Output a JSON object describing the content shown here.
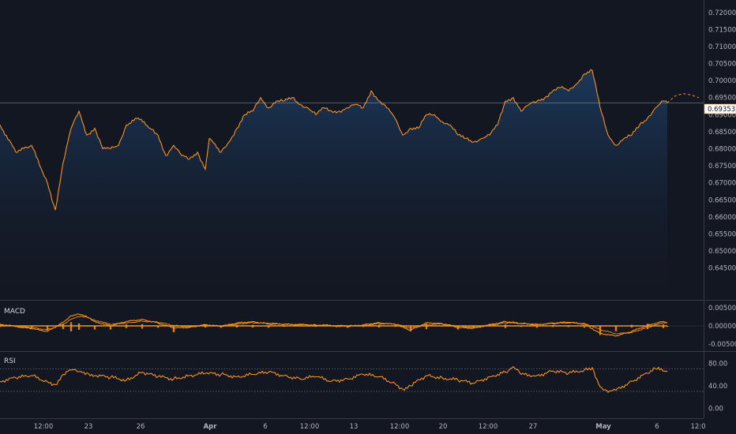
{
  "colors": {
    "background": "#131722",
    "line": "#f7931a",
    "area_top": "#1c3a5e",
    "separator": "#363a45",
    "axis_text": "#b2b5be",
    "price_label_bg": "#ffffff"
  },
  "panes": {
    "macd_label": "MACD",
    "rsi_label": "RSI"
  },
  "price_label": "0.69353",
  "chart_data": [
    {
      "type": "area",
      "pane": "price",
      "ylim": [
        0.6375,
        0.7225
      ],
      "yticks": [
        "0.72000",
        "0.71500",
        "0.71000",
        "0.70500",
        "0.70000",
        "0.69500",
        "0.69000",
        "0.68500",
        "0.68000",
        "0.67500",
        "0.67000",
        "0.66500",
        "0.66000",
        "0.65500",
        "0.65000",
        "0.64500"
      ],
      "ytick_values": [
        0.72,
        0.715,
        0.71,
        0.705,
        0.7,
        0.695,
        0.69,
        0.685,
        0.68,
        0.675,
        0.67,
        0.665,
        0.66,
        0.655,
        0.65,
        0.645
      ],
      "x": [
        0,
        20,
        40,
        60,
        70,
        80,
        90,
        100,
        110,
        120,
        130,
        140,
        150,
        160,
        175,
        190,
        200,
        210,
        220,
        230,
        240,
        250,
        260,
        265,
        280,
        290,
        300,
        310,
        320,
        330,
        340,
        350,
        360,
        370,
        380,
        390,
        400,
        410,
        420,
        430,
        440,
        450,
        460,
        470,
        480,
        490,
        500,
        510,
        520,
        530,
        540,
        550,
        560,
        570,
        580,
        590,
        600,
        610,
        620,
        630,
        640,
        650,
        660,
        670,
        680,
        690,
        700,
        710,
        720,
        730,
        740,
        750,
        760,
        770,
        780,
        790,
        800,
        810,
        820,
        830,
        840,
        845
      ],
      "values": [
        0.687,
        0.679,
        0.681,
        0.67,
        0.662,
        0.676,
        0.686,
        0.691,
        0.684,
        0.686,
        0.68,
        0.68,
        0.681,
        0.687,
        0.689,
        0.686,
        0.684,
        0.678,
        0.681,
        0.678,
        0.677,
        0.679,
        0.674,
        0.683,
        0.679,
        0.682,
        0.686,
        0.69,
        0.691,
        0.695,
        0.692,
        0.694,
        0.694,
        0.695,
        0.693,
        0.692,
        0.69,
        0.692,
        0.691,
        0.691,
        0.692,
        0.693,
        0.692,
        0.697,
        0.694,
        0.692,
        0.689,
        0.684,
        0.686,
        0.686,
        0.69,
        0.69,
        0.688,
        0.687,
        0.684,
        0.683,
        0.682,
        0.683,
        0.684,
        0.687,
        0.694,
        0.695,
        0.691,
        0.693,
        0.694,
        0.695,
        0.697,
        0.698,
        0.697,
        0.699,
        0.702,
        0.703,
        0.692,
        0.684,
        0.681,
        0.683,
        0.684,
        0.687,
        0.689,
        0.692,
        0.694,
        0.6935
      ],
      "projection_values": [
        0.6935,
        0.6955,
        0.6962,
        0.6958,
        0.695
      ]
    },
    {
      "type": "line",
      "pane": "macd",
      "ylim": [
        -0.0065,
        0.0065
      ],
      "yticks": [
        "0.00500",
        "0.00000",
        "-0.00500"
      ],
      "ytick_values": [
        0.005,
        0.0,
        -0.005
      ],
      "x": [
        0,
        40,
        60,
        80,
        90,
        100,
        110,
        120,
        140,
        160,
        180,
        200,
        220,
        240,
        260,
        280,
        300,
        320,
        340,
        360,
        400,
        440,
        460,
        480,
        500,
        520,
        540,
        560,
        580,
        600,
        640,
        660,
        680,
        700,
        720,
        740,
        760,
        780,
        800,
        820,
        840,
        845
      ],
      "series": [
        {
          "values": [
            0.0005,
            -0.0008,
            -0.0015,
            0.001,
            0.0028,
            0.0032,
            0.0025,
            0.0012,
            0.0,
            0.0012,
            0.0018,
            0.0008,
            -0.0006,
            -0.0004,
            0.0004,
            -0.0002,
            0.0008,
            0.0012,
            0.0005,
            0.0004,
            0.0002,
            -0.0002,
            0.0003,
            0.0009,
            0.0004,
            -0.0012,
            0.0009,
            0.0006,
            -0.0005,
            -0.0006,
            0.0012,
            0.0006,
            0.0003,
            0.0008,
            0.001,
            0.0005,
            -0.002,
            -0.0028,
            -0.0015,
            0.0002,
            0.0012,
            0.0009
          ]
        },
        {
          "values": [
            0.0003,
            -0.0005,
            -0.001,
            0.0004,
            0.0018,
            0.0025,
            0.0024,
            0.0016,
            0.0004,
            0.0008,
            0.0013,
            0.001,
            0.0001,
            -0.0002,
            0.0001,
            0.0,
            0.0005,
            0.0009,
            0.0007,
            0.0005,
            0.0003,
            0.0,
            0.0001,
            0.0006,
            0.0005,
            -0.0006,
            0.0003,
            0.0005,
            -0.0001,
            -0.0004,
            0.0008,
            0.0007,
            0.0005,
            0.0006,
            0.0008,
            0.0007,
            -0.001,
            -0.0022,
            -0.0018,
            -0.0004,
            0.0008,
            0.001
          ]
        }
      ]
    },
    {
      "type": "line",
      "pane": "rsi",
      "ylim": [
        -15,
        100
      ],
      "yticks": [
        "80.00",
        "40.00",
        "0.00"
      ],
      "ytick_values": [
        80,
        40,
        0
      ],
      "hlines": [
        70,
        30
      ],
      "x": [
        0,
        20,
        40,
        60,
        70,
        80,
        90,
        100,
        110,
        120,
        140,
        160,
        180,
        200,
        220,
        240,
        260,
        280,
        300,
        320,
        340,
        360,
        380,
        400,
        420,
        440,
        460,
        480,
        500,
        510,
        520,
        540,
        560,
        580,
        600,
        620,
        640,
        650,
        660,
        680,
        700,
        720,
        740,
        750,
        760,
        770,
        780,
        800,
        820,
        830,
        845
      ],
      "values": [
        48,
        54,
        58,
        47,
        42,
        60,
        68,
        65,
        63,
        58,
        55,
        50,
        64,
        56,
        52,
        58,
        62,
        60,
        56,
        60,
        64,
        58,
        52,
        56,
        48,
        52,
        60,
        56,
        44,
        34,
        40,
        58,
        54,
        50,
        44,
        56,
        64,
        74,
        60,
        58,
        66,
        62,
        68,
        72,
        38,
        28,
        32,
        48,
        62,
        70,
        66
      ]
    }
  ],
  "x_axis": {
    "ticks": [
      "12:00",
      "23",
      "26",
      "Apr",
      "6",
      "12:00",
      "13",
      "12:00",
      "20",
      "12:00",
      "27",
      "May",
      "6",
      "12:0"
    ],
    "tick_positions": [
      55,
      112,
      178,
      266,
      336,
      392,
      448,
      506,
      561,
      618,
      675,
      764,
      832,
      884
    ],
    "bold": [
      false,
      false,
      false,
      true,
      false,
      false,
      false,
      false,
      false,
      false,
      false,
      true,
      false,
      false
    ]
  }
}
